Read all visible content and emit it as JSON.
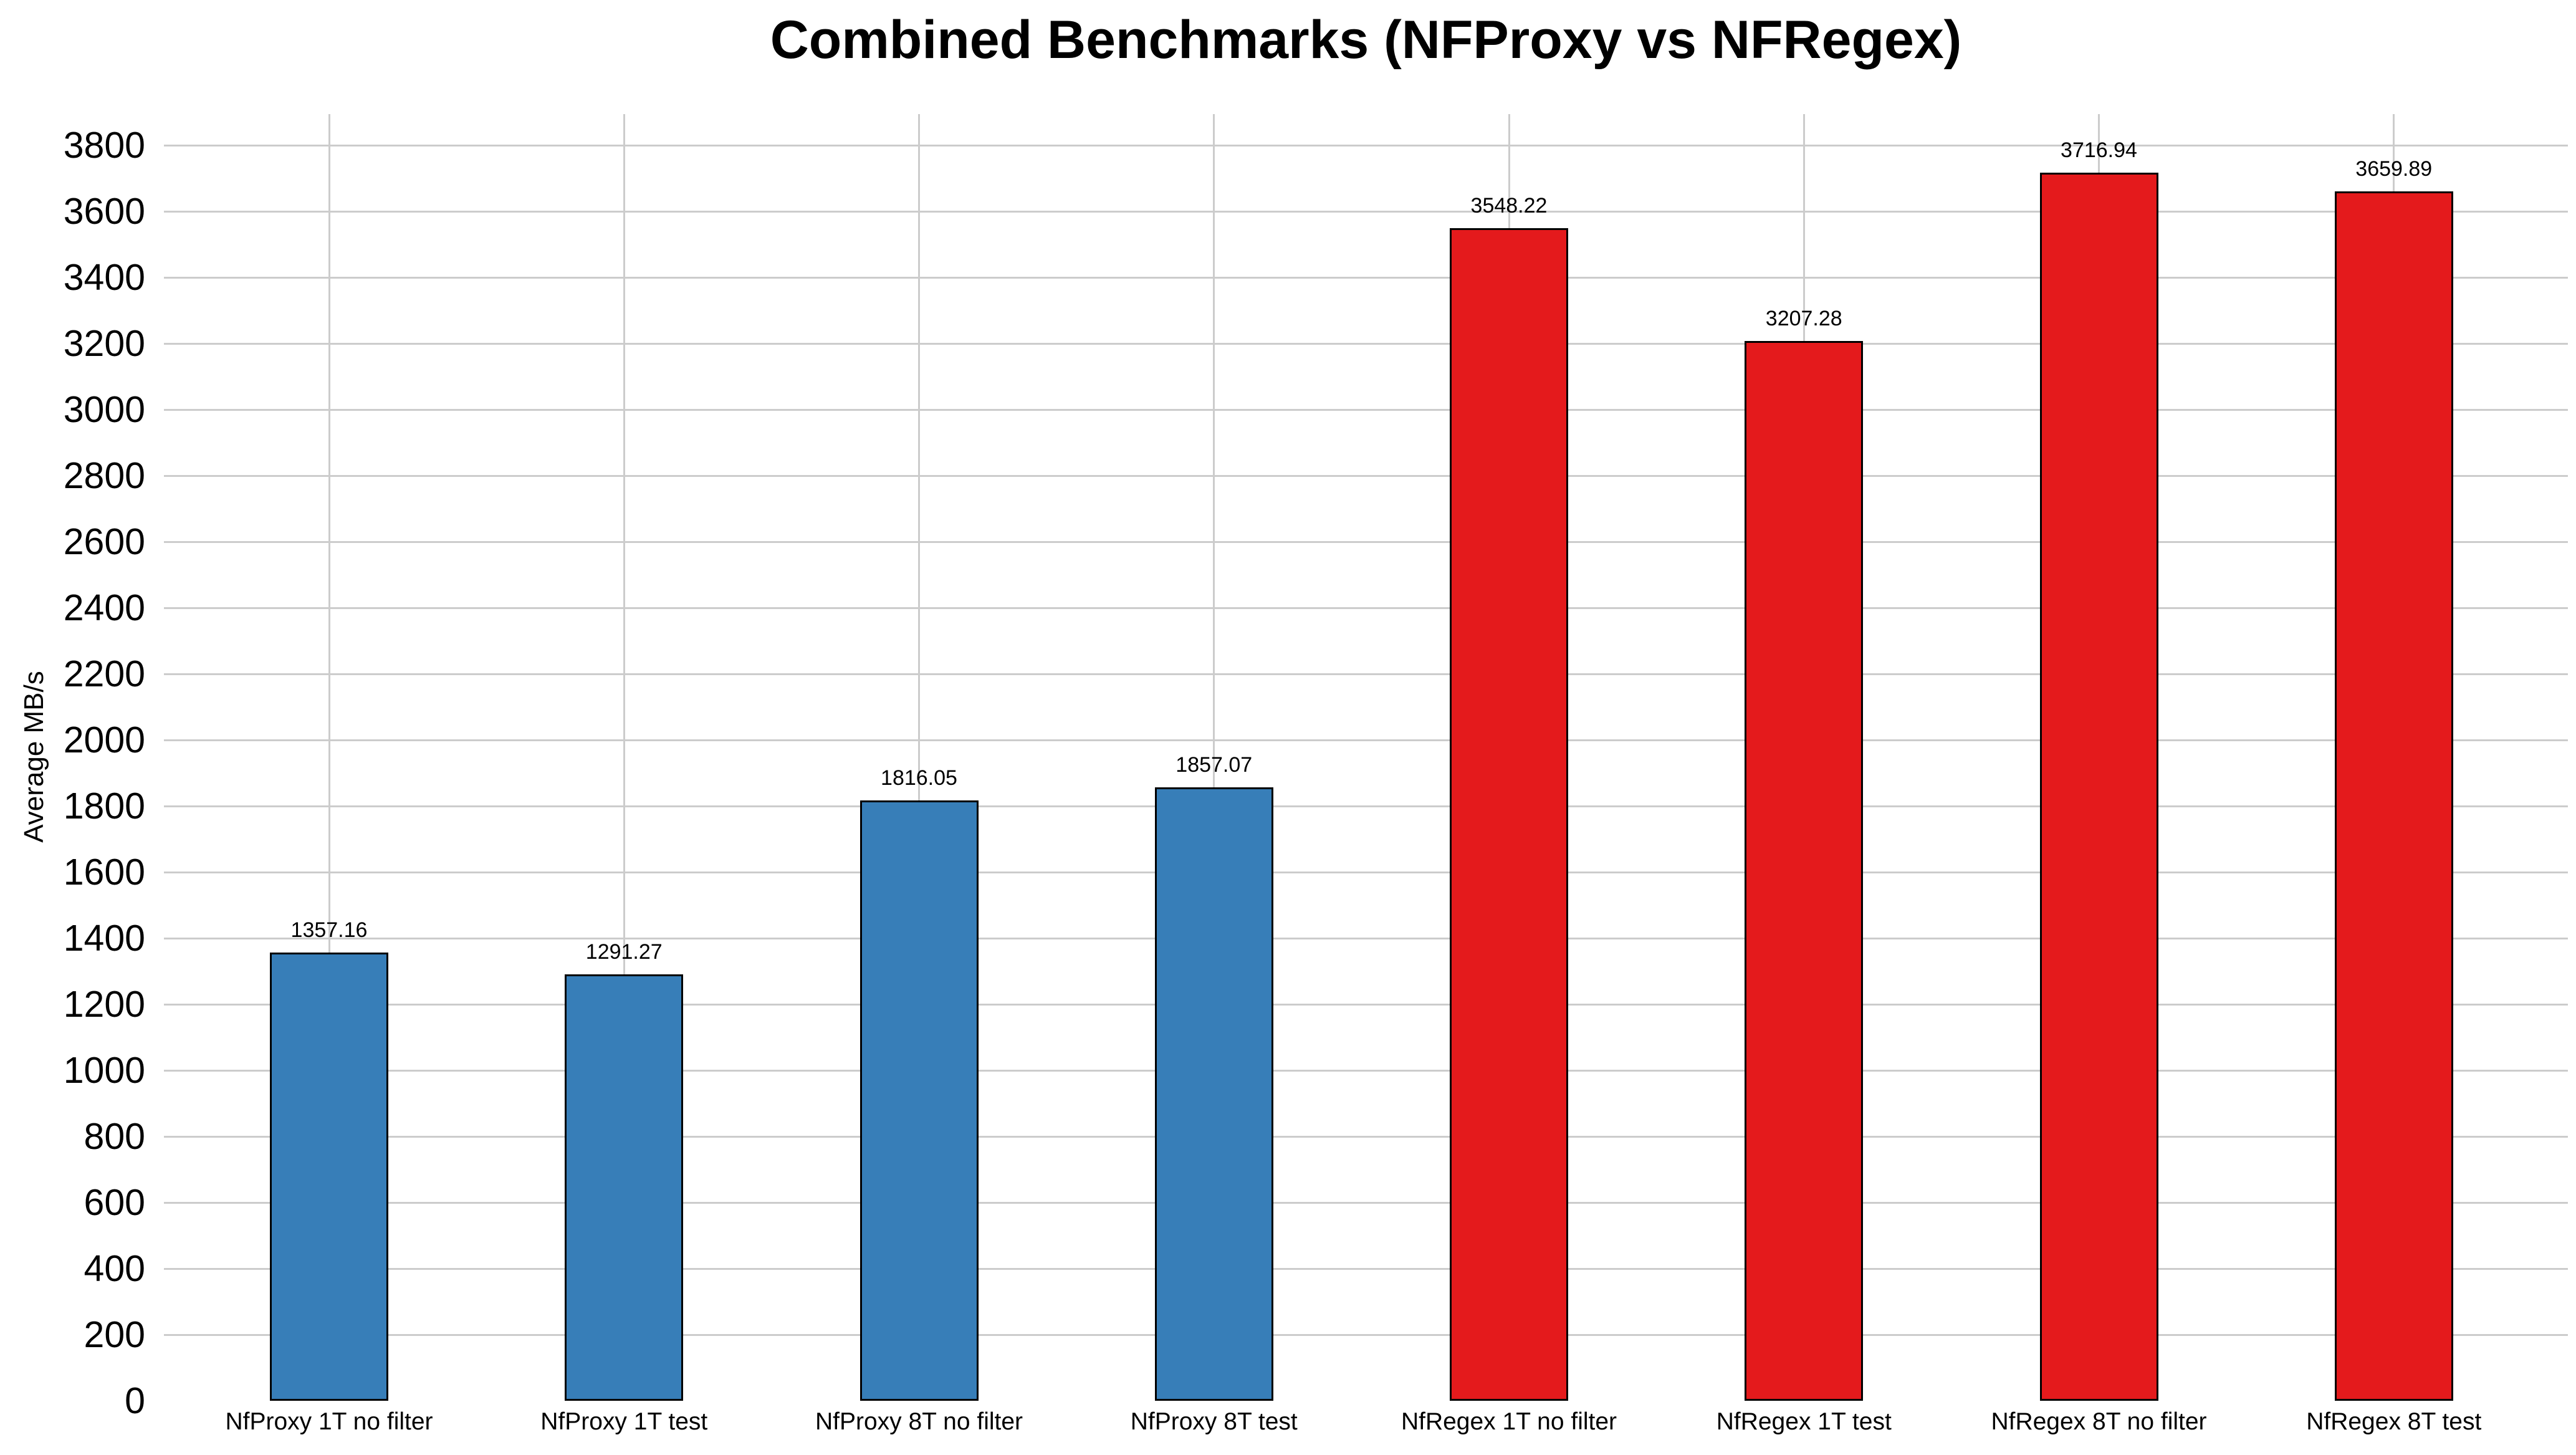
{
  "chart_data": {
    "type": "bar",
    "title": "Combined Benchmarks (NFProxy vs NFRegex)",
    "ylabel": "Average MB/s",
    "xlabel": "",
    "ylim": [
      0,
      3900
    ],
    "grid": true,
    "legend": "none",
    "categories": [
      "NfProxy 1T no filter",
      "NfProxy 1T test",
      "NfProxy 8T no filter",
      "NfProxy 8T test",
      "NfRegex 1T no filter",
      "NfRegex 1T test",
      "NfRegex 8T no filter",
      "NfRegex 8T test"
    ],
    "values": [
      1357.16,
      1291.27,
      1816.05,
      1857.07,
      3548.22,
      3207.28,
      3716.94,
      3659.89
    ],
    "value_labels": [
      "1357.16",
      "1291.27",
      "1816.05",
      "1857.07",
      "3548.22",
      "3207.28",
      "3716.94",
      "3659.89"
    ],
    "bar_colors": [
      "#377eb8",
      "#377eb8",
      "#377eb8",
      "#377eb8",
      "#e41a1c",
      "#e41a1c",
      "#e41a1c",
      "#e41a1c"
    ],
    "yticks": [
      0,
      200,
      400,
      600,
      800,
      1000,
      1200,
      1400,
      1600,
      1800,
      2000,
      2200,
      2400,
      2600,
      2800,
      3000,
      3200,
      3400,
      3600,
      3800
    ],
    "colors": {
      "proxy_series": "#377eb8",
      "regex_series": "#e41a1c",
      "bar_edge": "#000000",
      "gridline": "#cccccc",
      "text": "#000000",
      "background": "#ffffff"
    }
  }
}
